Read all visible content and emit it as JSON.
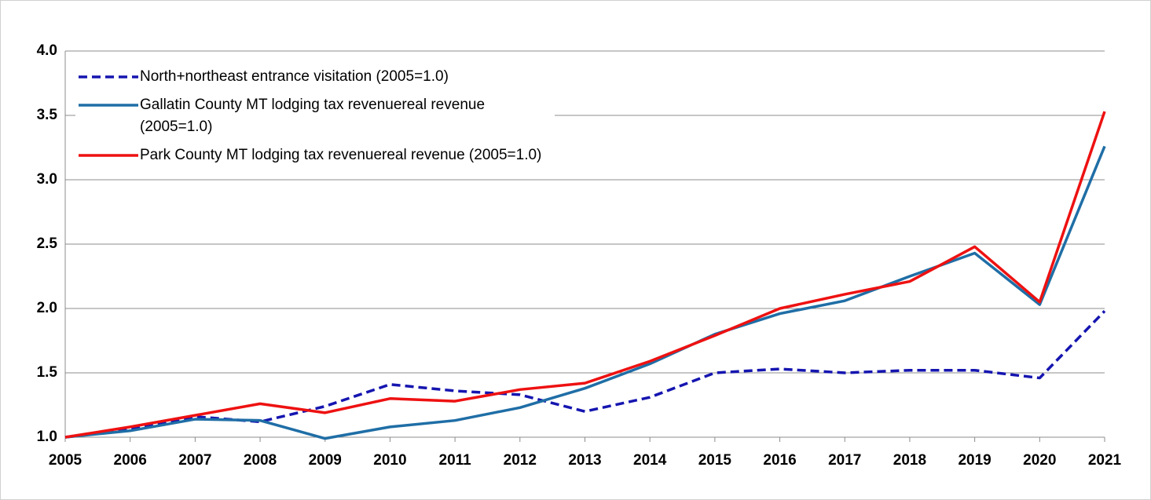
{
  "chart_data": {
    "type": "line",
    "x": [
      2005,
      2006,
      2007,
      2008,
      2009,
      2010,
      2011,
      2012,
      2013,
      2014,
      2015,
      2016,
      2017,
      2018,
      2019,
      2020,
      2021
    ],
    "xlim": [
      2005,
      2021
    ],
    "xticks": [
      2005,
      2006,
      2007,
      2008,
      2009,
      2010,
      2011,
      2012,
      2013,
      2014,
      2015,
      2016,
      2017,
      2018,
      2019,
      2020,
      2021
    ],
    "ylim": [
      1.0,
      4.0
    ],
    "yticks": [
      {
        "value": 1.0,
        "label": "1.0"
      },
      1.5,
      {
        "value": 2.0,
        "label": "2.0"
      },
      2.5,
      {
        "value": 3.0,
        "label": "3.0"
      },
      3.5,
      {
        "value": 4.0,
        "label": "4.0"
      }
    ],
    "grid": true,
    "legend": "upper-left",
    "series": [
      {
        "name": "North+northeast entrance visitation (2005=1.0)",
        "color": "#1515b0",
        "dashed": true,
        "values": [
          1.0,
          1.06,
          1.16,
          1.12,
          1.24,
          1.41,
          1.36,
          1.33,
          1.2,
          1.31,
          1.5,
          1.53,
          1.5,
          1.52,
          1.52,
          1.46,
          1.98
        ]
      },
      {
        "name": "Gallatin County MT lodging tax revenuereal revenue (2005=1.0)",
        "color": "#1f6ea6",
        "dashed": false,
        "values": [
          1.0,
          1.05,
          1.14,
          1.13,
          0.99,
          1.08,
          1.13,
          1.23,
          1.38,
          1.57,
          1.8,
          1.96,
          2.06,
          2.25,
          2.43,
          2.03,
          3.26
        ]
      },
      {
        "name": "Park County MT lodging tax revenuereal revenue (2005=1.0)",
        "color": "#ee1111",
        "dashed": false,
        "values": [
          1.0,
          1.08,
          1.17,
          1.26,
          1.19,
          1.3,
          1.28,
          1.37,
          1.42,
          1.59,
          1.79,
          2.0,
          2.11,
          2.21,
          2.48,
          2.05,
          3.53
        ]
      }
    ]
  }
}
